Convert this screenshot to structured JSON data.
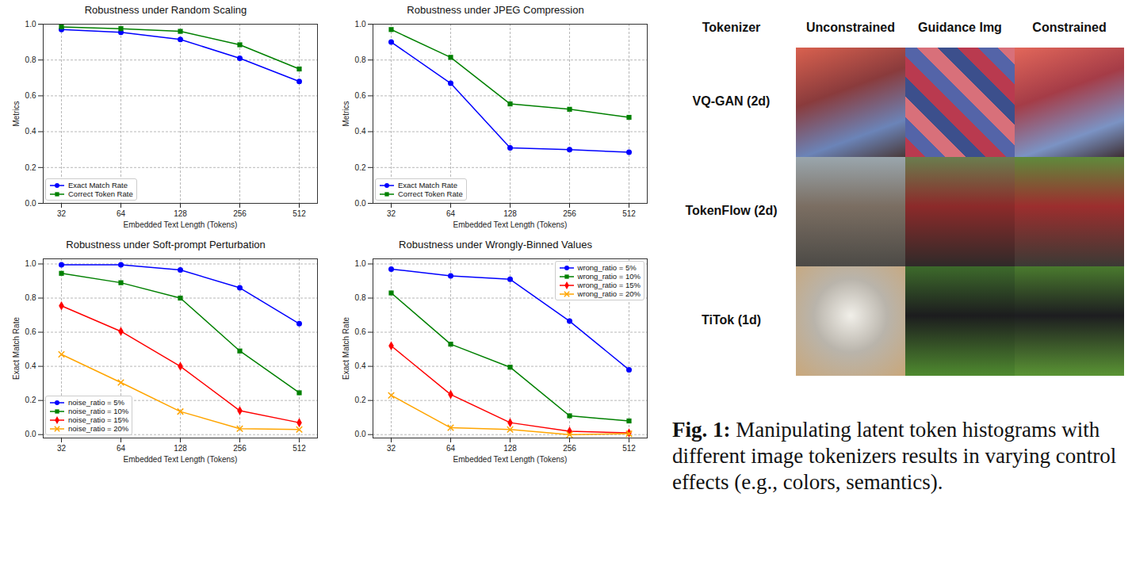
{
  "chart_data": [
    {
      "type": "line",
      "title": "Robustness under Random Scaling",
      "x_label": "Embedded Text Length (Tokens)",
      "y_label": "Metrics",
      "categories": [
        "32",
        "64",
        "128",
        "256",
        "512"
      ],
      "series": [
        {
          "name": "Exact Match Rate",
          "color": "#0000ff",
          "marker": "circle",
          "values": [
            0.97,
            0.955,
            0.915,
            0.81,
            0.68
          ]
        },
        {
          "name": "Correct Token Rate",
          "color": "#008000",
          "marker": "square",
          "values": [
            0.985,
            0.975,
            0.96,
            0.885,
            0.75
          ]
        }
      ],
      "ylim": [
        0,
        1
      ],
      "yticks": [
        {
          "value": 0,
          "label": "0.0"
        },
        {
          "value": 0.2,
          "label": "0.2"
        },
        {
          "value": 0.4,
          "label": "0.4"
        },
        {
          "value": 0.6,
          "label": "0.6"
        },
        {
          "value": 0.8,
          "label": "0.8"
        },
        {
          "value": 1,
          "label": "1.0"
        }
      ],
      "grid": true,
      "legend": "lower left"
    },
    {
      "type": "line",
      "title": "Robustness under JPEG Compression",
      "x_label": "Embedded Text Length (Tokens)",
      "y_label": "Metrics",
      "categories": [
        "32",
        "64",
        "128",
        "256",
        "512"
      ],
      "series": [
        {
          "name": "Exact Match Rate",
          "color": "#0000ff",
          "marker": "circle",
          "values": [
            0.9,
            0.67,
            0.31,
            0.3,
            0.285
          ]
        },
        {
          "name": "Correct Token Rate",
          "color": "#008000",
          "marker": "square",
          "values": [
            0.97,
            0.815,
            0.555,
            0.525,
            0.48
          ]
        }
      ],
      "ylim": [
        0,
        1
      ],
      "yticks": [
        {
          "value": 0,
          "label": "0.0"
        },
        {
          "value": 0.2,
          "label": "0.2"
        },
        {
          "value": 0.4,
          "label": "0.4"
        },
        {
          "value": 0.6,
          "label": "0.6"
        },
        {
          "value": 0.8,
          "label": "0.8"
        },
        {
          "value": 1,
          "label": "1.0"
        }
      ],
      "grid": true,
      "legend": "lower left"
    },
    {
      "type": "line",
      "title": "Robustness under Soft-prompt Perturbation",
      "x_label": "Embedded Text Length (Tokens)",
      "y_label": "Exact Match Rate",
      "categories": [
        "32",
        "64",
        "128",
        "256",
        "512"
      ],
      "series": [
        {
          "name": "noise_ratio = 5%",
          "color": "#0000ff",
          "marker": "circle",
          "values": [
            0.995,
            0.995,
            0.965,
            0.86,
            0.65
          ]
        },
        {
          "name": "noise_ratio = 10%",
          "color": "#008000",
          "marker": "square",
          "values": [
            0.945,
            0.89,
            0.8,
            0.49,
            0.245
          ]
        },
        {
          "name": "noise_ratio = 15%",
          "color": "#ff0000",
          "marker": "diamond",
          "values": [
            0.755,
            0.605,
            0.4,
            0.14,
            0.07
          ]
        },
        {
          "name": "noise_ratio = 20%",
          "color": "#ffa500",
          "marker": "x",
          "values": [
            0.47,
            0.305,
            0.135,
            0.035,
            0.03
          ]
        }
      ],
      "ylim": [
        -0.02,
        1.03
      ],
      "yticks": [
        {
          "value": 0,
          "label": "0.0"
        },
        {
          "value": 0.2,
          "label": "0.2"
        },
        {
          "value": 0.4,
          "label": "0.4"
        },
        {
          "value": 0.6,
          "label": "0.6"
        },
        {
          "value": 0.8,
          "label": "0.8"
        },
        {
          "value": 1,
          "label": "1.0"
        }
      ],
      "grid": true,
      "legend": "lower left"
    },
    {
      "type": "line",
      "title": "Robustness under Wrongly-Binned Values",
      "x_label": "Embedded Text Length (Tokens)",
      "y_label": "Exact Match Rate",
      "categories": [
        "32",
        "64",
        "128",
        "256",
        "512"
      ],
      "series": [
        {
          "name": "wrong_ratio = 5%",
          "color": "#0000ff",
          "marker": "circle",
          "values": [
            0.97,
            0.93,
            0.91,
            0.665,
            0.38
          ]
        },
        {
          "name": "wrong_ratio = 10%",
          "color": "#008000",
          "marker": "square",
          "values": [
            0.83,
            0.53,
            0.395,
            0.11,
            0.08
          ]
        },
        {
          "name": "wrong_ratio = 15%",
          "color": "#ff0000",
          "marker": "diamond",
          "values": [
            0.52,
            0.235,
            0.07,
            0.02,
            0.01
          ]
        },
        {
          "name": "wrong_ratio = 20%",
          "color": "#ffa500",
          "marker": "x",
          "values": [
            0.23,
            0.04,
            0.03,
            0.0,
            0.005
          ]
        }
      ],
      "ylim": [
        -0.02,
        1.03
      ],
      "yticks": [
        {
          "value": 0,
          "label": "0.0"
        },
        {
          "value": 0.2,
          "label": "0.2"
        },
        {
          "value": 0.4,
          "label": "0.4"
        },
        {
          "value": 0.6,
          "label": "0.6"
        },
        {
          "value": 0.8,
          "label": "0.8"
        },
        {
          "value": 1,
          "label": "1.0"
        }
      ],
      "grid": true,
      "legend": "upper right"
    }
  ],
  "image_grid": {
    "header": [
      "Tokenizer",
      "Unconstrained",
      "Guidance Img",
      "Constrained"
    ],
    "rows": [
      "VQ-GAN (2d)",
      "TokenFlow (2d)",
      "TiTok (1d)"
    ]
  },
  "caption": {
    "label": "Fig. 1:",
    "text": "Manipulating latent token histograms with different image tokenizers results in varying control effects (e.g., colors, semantics)."
  }
}
